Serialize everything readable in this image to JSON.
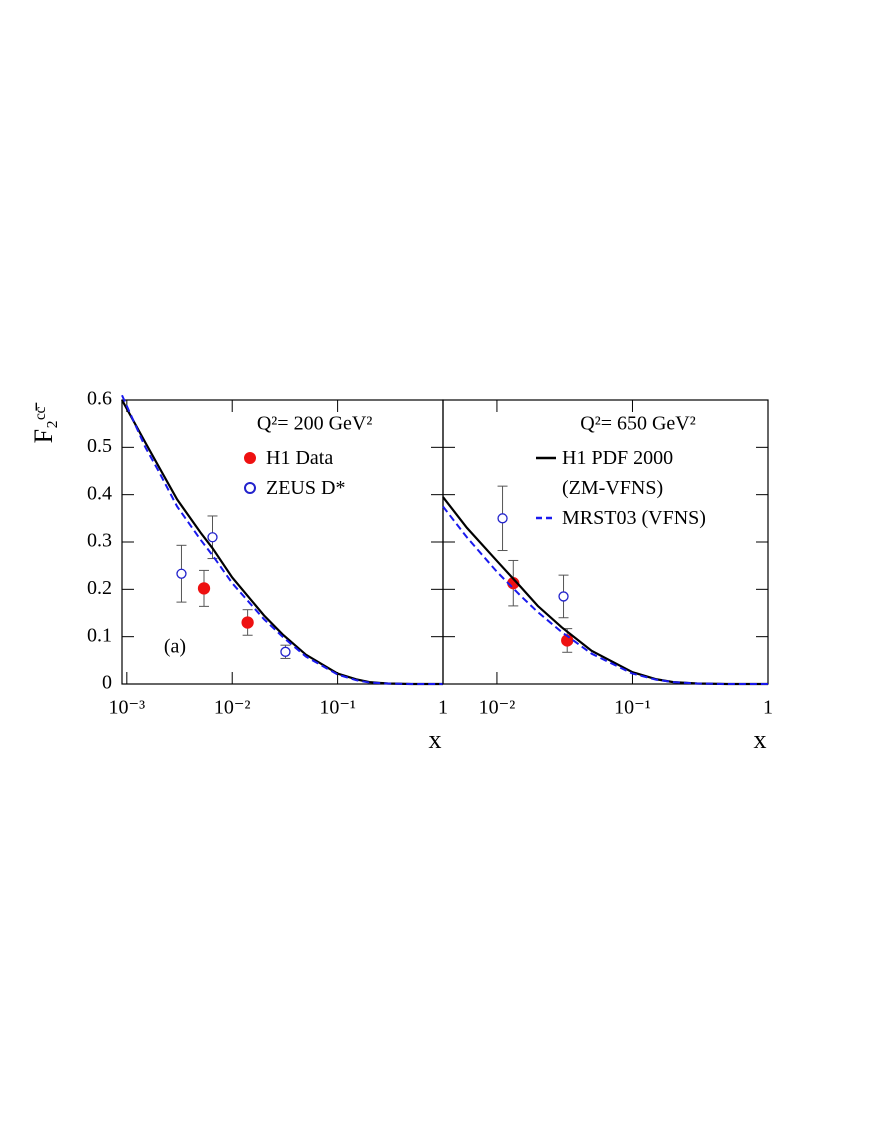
{
  "chart_data": [
    {
      "type": "scatter",
      "ylabel": "F₂ᶜᶜ̄",
      "xlabel": "x",
      "subtitle": "Q²= 200 GeV²",
      "annotation": "(a)",
      "log_x": true,
      "xlim": [
        0.0009,
        1
      ],
      "ylim": [
        0,
        0.6
      ],
      "xticks": [
        {
          "value": 0.001,
          "label": "10⁻³"
        },
        {
          "value": 0.01,
          "label": "10⁻²"
        },
        {
          "value": 0.1,
          "label": "10⁻¹"
        },
        1
      ],
      "yticks": [
        0,
        0.1,
        0.2,
        0.3,
        0.4,
        0.5,
        0.6
      ],
      "series": [
        {
          "name": "H1 Data",
          "color": "#ee1111",
          "style": "filled",
          "x": [
            0.0054,
            0.014
          ],
          "values": [
            0.202,
            0.13
          ],
          "errors": [
            0.038,
            0.027
          ]
        },
        {
          "name": "ZEUS D*",
          "color": "#2222cc",
          "style": "open",
          "x": [
            0.0033,
            0.0065,
            0.032
          ],
          "values": [
            0.233,
            0.31,
            0.068
          ],
          "errors": [
            0.06,
            0.045,
            0.014
          ]
        },
        {
          "color": "#000000",
          "style": "solid",
          "x": [
            0.0009,
            0.0015,
            0.002,
            0.003,
            0.005,
            0.0065,
            0.01,
            0.02,
            0.03,
            0.05,
            0.1,
            0.15,
            0.2,
            0.3,
            0.5,
            1
          ],
          "values": [
            0.6,
            0.51,
            0.46,
            0.39,
            0.32,
            0.287,
            0.225,
            0.145,
            0.105,
            0.062,
            0.022,
            0.01,
            0.004,
            0.001,
            0,
            0
          ]
        },
        {
          "color": "#1a1aee",
          "style": "dashed",
          "x": [
            0.0009,
            0.0015,
            0.002,
            0.003,
            0.005,
            0.0065,
            0.01,
            0.02,
            0.03,
            0.05,
            0.1,
            0.15,
            0.2,
            0.3,
            0.5,
            1
          ],
          "values": [
            0.61,
            0.5,
            0.45,
            0.375,
            0.305,
            0.272,
            0.213,
            0.137,
            0.1,
            0.058,
            0.02,
            0.008,
            0.003,
            0.001,
            0,
            0
          ]
        }
      ]
    },
    {
      "type": "scatter",
      "xlabel": "x",
      "subtitle": "Q²= 650 GeV²",
      "log_x": true,
      "xlim": [
        0.004,
        1
      ],
      "ylim": [
        0,
        0.6
      ],
      "xticks": [
        {
          "value": 0.01,
          "label": "10⁻²"
        },
        {
          "value": 0.1,
          "label": "10⁻¹"
        },
        1
      ],
      "series": [
        {
          "color": "#ee1111",
          "style": "filled",
          "x": [
            0.0132,
            0.033
          ],
          "values": [
            0.213,
            0.092
          ],
          "errors": [
            0.048,
            0.025
          ]
        },
        {
          "color": "#2222cc",
          "style": "open",
          "x": [
            0.011,
            0.031
          ],
          "values": [
            0.35,
            0.185
          ],
          "errors": [
            0.068,
            0.045
          ]
        },
        {
          "name": "H1 PDF 2000\n(ZM-VFNS)",
          "color": "#000000",
          "style": "solid",
          "x": [
            0.004,
            0.006,
            0.01,
            0.015,
            0.02,
            0.03,
            0.05,
            0.1,
            0.15,
            0.2,
            0.3,
            0.5,
            1
          ],
          "values": [
            0.395,
            0.33,
            0.26,
            0.205,
            0.165,
            0.12,
            0.07,
            0.025,
            0.01,
            0.004,
            0.001,
            0,
            0
          ]
        },
        {
          "name": "MRST03 (VFNS)",
          "color": "#1a1aee",
          "style": "dashed",
          "x": [
            0.004,
            0.006,
            0.01,
            0.015,
            0.02,
            0.03,
            0.05,
            0.1,
            0.15,
            0.2,
            0.3,
            0.5,
            1
          ],
          "values": [
            0.375,
            0.31,
            0.237,
            0.186,
            0.152,
            0.11,
            0.064,
            0.022,
            0.009,
            0.004,
            0.001,
            0,
            0
          ]
        }
      ]
    }
  ]
}
